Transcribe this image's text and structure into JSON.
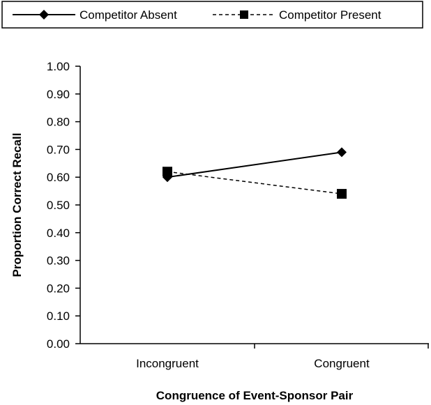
{
  "chart_data": {
    "type": "line",
    "categories": [
      "Incongruent",
      "Congruent"
    ],
    "series": [
      {
        "name": "Competitor Absent",
        "values": [
          0.6,
          0.69
        ],
        "line_style": "solid",
        "marker": "diamond",
        "color": "#000000"
      },
      {
        "name": "Competitor Present",
        "values": [
          0.62,
          0.54
        ],
        "line_style": "dashed",
        "marker": "square",
        "color": "#000000"
      }
    ],
    "xlabel": "Congruence of Event-Sponsor Pair",
    "ylabel": "Proportion Correct Recall",
    "ylim": [
      0,
      1
    ],
    "yticks": [
      "0.00",
      "0.10",
      "0.20",
      "0.30",
      "0.40",
      "0.50",
      "0.60",
      "0.70",
      "0.80",
      "0.90",
      "1.00"
    ],
    "grid": false,
    "legend_position": "top"
  }
}
